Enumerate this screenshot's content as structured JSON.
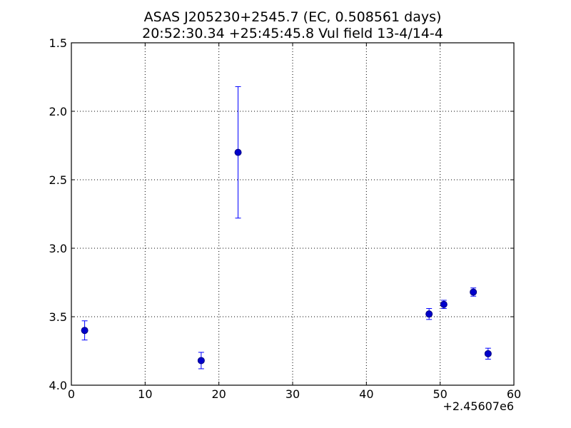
{
  "chart_data": {
    "type": "scatter",
    "title": "ASAS J205230+2545.7 (EC, 0.508561 days)",
    "subtitle": "20:52:30.34 +25:45:45.8 Vul field 13-4/14-4",
    "xlabel": "",
    "ylabel": "",
    "x_offset_label": "+2.45607e6",
    "xlim": [
      0,
      60
    ],
    "ylim": [
      1.5,
      4.0
    ],
    "y_inverted": true,
    "grid": true,
    "x_ticks": [
      0,
      10,
      20,
      30,
      40,
      50,
      60
    ],
    "x_tick_labels": [
      "0",
      "10",
      "20",
      "30",
      "40",
      "50",
      "60"
    ],
    "y_ticks": [
      1.5,
      2.0,
      2.5,
      3.0,
      3.5,
      4.0
    ],
    "y_tick_labels": [
      "1.5",
      "2.0",
      "2.5",
      "3.0",
      "3.5",
      "4.0"
    ],
    "marker_color": "#0000cc",
    "errorbar_color": "#0000ff",
    "points": [
      {
        "x": 1.8,
        "y": 3.6,
        "yerr": 0.07
      },
      {
        "x": 17.6,
        "y": 3.82,
        "yerr": 0.06
      },
      {
        "x": 22.6,
        "y": 2.3,
        "yerr": 0.48
      },
      {
        "x": 48.5,
        "y": 3.48,
        "yerr": 0.04
      },
      {
        "x": 50.5,
        "y": 3.41,
        "yerr": 0.03
      },
      {
        "x": 54.5,
        "y": 3.32,
        "yerr": 0.03
      },
      {
        "x": 56.5,
        "y": 3.77,
        "yerr": 0.04
      }
    ]
  }
}
